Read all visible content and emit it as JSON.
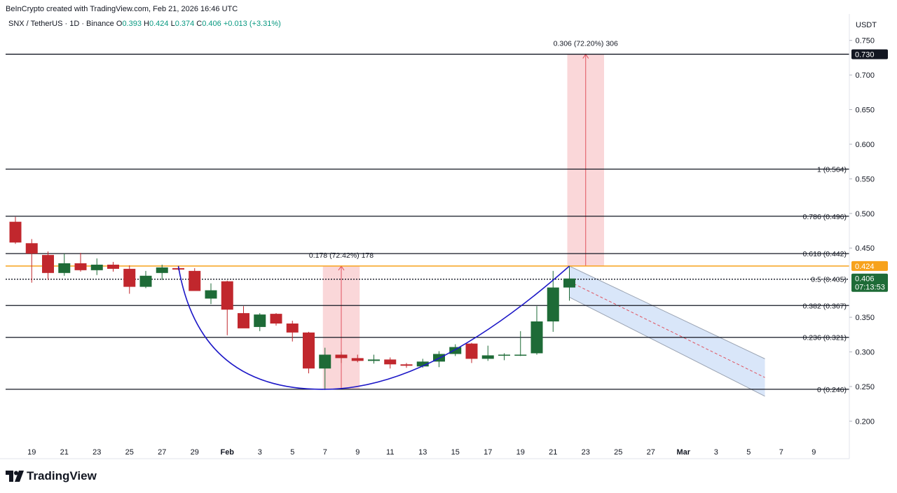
{
  "header": {
    "credit": "BeInCrypto created with TradingView.com, Feb 21, 2026 16:46 UTC",
    "symbol": "SNX / TetherUS · 1D · Binance",
    "o_label": "O",
    "o_value": "0.393",
    "h_label": "H",
    "h_value": "0.424",
    "l_label": "L",
    "l_value": "0.374",
    "c_label": "C",
    "c_value": "0.406",
    "change": "+0.013 (+3.31%)"
  },
  "logo": {
    "text": "TradingView",
    "icon": "tradingview-logo-icon"
  },
  "colors": {
    "up": "#1e6b37",
    "down": "#c1272d",
    "fib": "#131722",
    "orange": "#f7a21b",
    "cup": "#1d18c7",
    "measure_fill": "#f8c9cc",
    "measure_line": "#e0525e",
    "channel_fill": "#cfe0f7",
    "channel_edge": "#9aa3b2"
  },
  "chart_data": {
    "type": "candlestick",
    "currency": "USDT",
    "y_ticks": [
      "0.750",
      "0.700",
      "0.650",
      "0.600",
      "0.550",
      "0.500",
      "0.450",
      "0.350",
      "0.300",
      "0.250",
      "0.200"
    ],
    "ylim": [
      0.19,
      0.76
    ],
    "x_tick_labels": [
      "19",
      "21",
      "23",
      "25",
      "27",
      "29",
      "Feb",
      "3",
      "5",
      "7",
      "9",
      "11",
      "13",
      "15",
      "17",
      "19",
      "21",
      "23",
      "25",
      "27",
      "Mar",
      "3",
      "5",
      "7",
      "9"
    ],
    "candles": [
      {
        "date": "2026-01-18",
        "o": 0.488,
        "h": 0.495,
        "l": 0.456,
        "c": 0.458
      },
      {
        "date": "2026-01-19",
        "o": 0.457,
        "h": 0.463,
        "l": 0.4,
        "c": 0.442
      },
      {
        "date": "2026-01-20",
        "o": 0.44,
        "h": 0.445,
        "l": 0.404,
        "c": 0.414
      },
      {
        "date": "2026-01-21",
        "o": 0.414,
        "h": 0.442,
        "l": 0.41,
        "c": 0.428
      },
      {
        "date": "2026-01-22",
        "o": 0.428,
        "h": 0.443,
        "l": 0.416,
        "c": 0.418
      },
      {
        "date": "2026-01-23",
        "o": 0.418,
        "h": 0.435,
        "l": 0.411,
        "c": 0.426
      },
      {
        "date": "2026-01-24",
        "o": 0.426,
        "h": 0.43,
        "l": 0.416,
        "c": 0.42
      },
      {
        "date": "2026-01-25",
        "o": 0.42,
        "h": 0.425,
        "l": 0.384,
        "c": 0.394
      },
      {
        "date": "2026-01-26",
        "o": 0.394,
        "h": 0.417,
        "l": 0.392,
        "c": 0.41
      },
      {
        "date": "2026-01-27",
        "o": 0.414,
        "h": 0.426,
        "l": 0.404,
        "c": 0.422
      },
      {
        "date": "2026-01-28",
        "o": 0.421,
        "h": 0.424,
        "l": 0.418,
        "c": 0.419
      },
      {
        "date": "2026-01-29",
        "o": 0.417,
        "h": 0.421,
        "l": 0.389,
        "c": 0.388
      },
      {
        "date": "2026-01-30",
        "o": 0.377,
        "h": 0.399,
        "l": 0.369,
        "c": 0.389
      },
      {
        "date": "2026-01-31",
        "o": 0.402,
        "h": 0.403,
        "l": 0.324,
        "c": 0.361
      },
      {
        "date": "2026-02-01",
        "o": 0.356,
        "h": 0.366,
        "l": 0.335,
        "c": 0.334
      },
      {
        "date": "2026-02-02",
        "o": 0.336,
        "h": 0.356,
        "l": 0.33,
        "c": 0.354
      },
      {
        "date": "2026-02-03",
        "o": 0.355,
        "h": 0.356,
        "l": 0.338,
        "c": 0.341
      },
      {
        "date": "2026-02-04",
        "o": 0.341,
        "h": 0.345,
        "l": 0.315,
        "c": 0.328
      },
      {
        "date": "2026-02-05",
        "o": 0.328,
        "h": 0.329,
        "l": 0.269,
        "c": 0.276
      },
      {
        "date": "2026-02-06",
        "o": 0.276,
        "h": 0.306,
        "l": 0.245,
        "c": 0.296
      },
      {
        "date": "2026-02-07",
        "o": 0.296,
        "h": 0.3,
        "l": 0.284,
        "c": 0.291
      },
      {
        "date": "2026-02-08",
        "o": 0.291,
        "h": 0.296,
        "l": 0.285,
        "c": 0.287
      },
      {
        "date": "2026-02-09",
        "o": 0.287,
        "h": 0.296,
        "l": 0.283,
        "c": 0.289
      },
      {
        "date": "2026-02-10",
        "o": 0.289,
        "h": 0.292,
        "l": 0.276,
        "c": 0.282
      },
      {
        "date": "2026-02-11",
        "o": 0.282,
        "h": 0.284,
        "l": 0.277,
        "c": 0.28
      },
      {
        "date": "2026-02-12",
        "o": 0.279,
        "h": 0.29,
        "l": 0.277,
        "c": 0.286
      },
      {
        "date": "2026-02-13",
        "o": 0.286,
        "h": 0.301,
        "l": 0.278,
        "c": 0.297
      },
      {
        "date": "2026-02-14",
        "o": 0.297,
        "h": 0.311,
        "l": 0.294,
        "c": 0.307
      },
      {
        "date": "2026-02-15",
        "o": 0.312,
        "h": 0.313,
        "l": 0.284,
        "c": 0.29
      },
      {
        "date": "2026-02-16",
        "o": 0.29,
        "h": 0.309,
        "l": 0.287,
        "c": 0.295
      },
      {
        "date": "2026-02-17",
        "o": 0.296,
        "h": 0.298,
        "l": 0.288,
        "c": 0.296
      },
      {
        "date": "2026-02-18",
        "o": 0.296,
        "h": 0.33,
        "l": 0.294,
        "c": 0.296
      },
      {
        "date": "2026-02-19",
        "o": 0.298,
        "h": 0.366,
        "l": 0.296,
        "c": 0.344
      },
      {
        "date": "2026-02-20",
        "o": 0.344,
        "h": 0.417,
        "l": 0.329,
        "c": 0.393
      },
      {
        "date": "2026-02-21",
        "o": 0.393,
        "h": 0.424,
        "l": 0.374,
        "c": 0.406
      }
    ],
    "fib_levels": [
      {
        "label": "1 (0.564)",
        "value": 0.564
      },
      {
        "label": "0.786 (0.496)",
        "value": 0.496
      },
      {
        "label": "0.618 (0.442)",
        "value": 0.442
      },
      {
        "label": "0.5 (0.405)",
        "value": 0.405
      },
      {
        "label": "0.382 (0.367)",
        "value": 0.367
      },
      {
        "label": "0.236 (0.321)",
        "value": 0.321
      },
      {
        "label": "0 (0.246)",
        "value": 0.246
      }
    ],
    "target_line": 0.73,
    "resistance_line": 0.424,
    "price_tags": [
      {
        "value": 0.73,
        "label": "0.730",
        "style": "dark"
      },
      {
        "value": 0.424,
        "label": "0.424",
        "style": "orange"
      },
      {
        "value": 0.406,
        "label": "0.406",
        "sub": "07:13:53",
        "style": "green"
      }
    ],
    "measures": [
      {
        "label": "0.178 (72.42%) 178",
        "from_date": "2026-02-06",
        "to_date": "2026-02-08",
        "low": 0.246,
        "high": 0.424
      },
      {
        "label": "0.306 (72.20%) 306",
        "from_date": "2026-02-21",
        "to_date": "2026-02-23",
        "low": 0.424,
        "high": 0.73
      }
    ],
    "cup_curve": {
      "start_date": "2026-01-28",
      "start": 0.424,
      "bottom_date": "2026-02-06",
      "bottom": 0.246,
      "end_date": "2026-02-21",
      "end": 0.424
    },
    "channel": {
      "start_date": "2026-02-21",
      "end_date": "2026-03-05",
      "upper_start": 0.424,
      "upper_end": 0.29,
      "lower_start": 0.379,
      "lower_end": 0.236
    },
    "grid": false
  }
}
